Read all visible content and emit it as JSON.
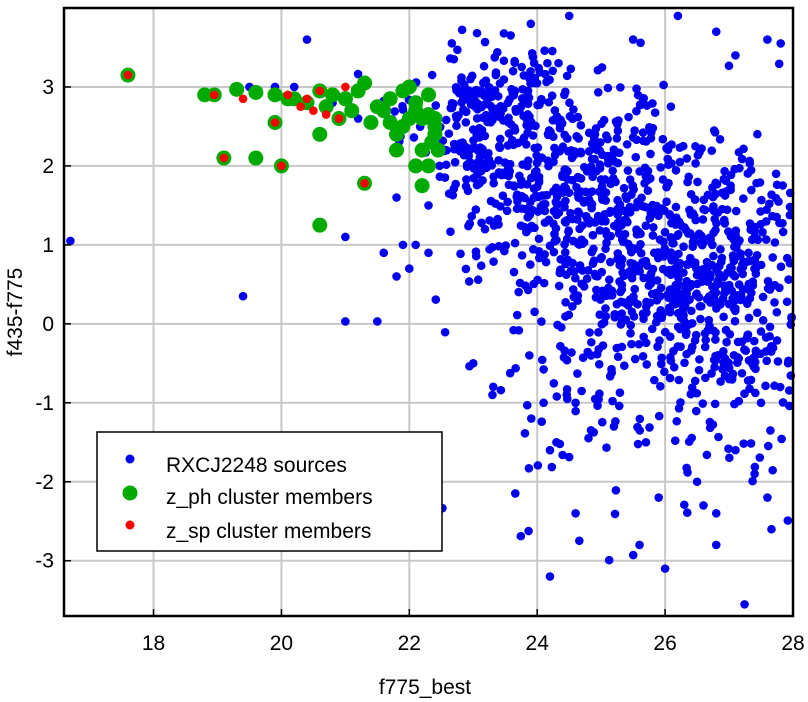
{
  "chart_data": {
    "type": "scatter",
    "xlabel": "f775_best",
    "ylabel": "f435-f775",
    "xlim": [
      16.6,
      28.0
    ],
    "ylim": [
      -3.7,
      4.0
    ],
    "xticks": [
      "18",
      "20",
      "22",
      "24",
      "26",
      "28"
    ],
    "yticks": [
      "3",
      "2",
      "1",
      "0",
      "-1",
      "-2",
      "-3"
    ],
    "xtick_values": [
      18,
      20,
      22,
      24,
      26,
      28
    ],
    "ytick_values": [
      3,
      2,
      1,
      0,
      -1,
      -2,
      -3
    ],
    "grid": true,
    "legend_position": "bottom-left",
    "series": [
      {
        "name": "RXCJ2248 sources",
        "color": "#0000ee",
        "marker": "small-circle",
        "generated_count": 1450,
        "points": [
          [
            16.7,
            1.05
          ],
          [
            19.4,
            0.35
          ],
          [
            21.0,
            0.03
          ],
          [
            21.5,
            0.03
          ],
          [
            20.4,
            3.6
          ],
          [
            21.6,
            0.9
          ],
          [
            21.3,
            1.8
          ],
          [
            20.8,
            2.8
          ],
          [
            21.9,
            1.0
          ],
          [
            21.8,
            1.6
          ],
          [
            21.8,
            0.6
          ],
          [
            22.0,
            0.7
          ],
          [
            21.2,
            2.6
          ],
          [
            20.2,
            3.0
          ],
          [
            19.9,
            3.0
          ],
          [
            19.5,
            3.0
          ],
          [
            22.1,
            1.0
          ],
          [
            22.3,
            1.5
          ],
          [
            22.3,
            0.9
          ],
          [
            21.0,
            1.1
          ],
          [
            24.2,
            -3.2
          ],
          [
            24.2,
            -1.6
          ],
          [
            24.3,
            -1.5
          ],
          [
            24.6,
            -2.4
          ],
          [
            25.6,
            -2.8
          ],
          [
            26.0,
            -3.1
          ],
          [
            26.8,
            -2.8
          ],
          [
            26.6,
            -2.3
          ],
          [
            26.8,
            -2.4
          ],
          [
            27.6,
            -2.2
          ],
          [
            27.4,
            -1.9
          ],
          [
            25.9,
            -2.2
          ],
          [
            25.7,
            -1.5
          ],
          [
            25.2,
            -1.3
          ],
          [
            24.6,
            -1.0
          ],
          [
            24.1,
            -1.0
          ],
          [
            23.3,
            -0.9
          ],
          [
            23.0,
            -0.5
          ],
          [
            27.5,
            -1.0
          ],
          [
            27.8,
            -0.8
          ],
          [
            27.1,
            -1.6
          ],
          [
            26.5,
            -2.0
          ],
          [
            26.2,
            3.9
          ],
          [
            26.0,
            4.0
          ],
          [
            25.5,
            3.6
          ],
          [
            26.8,
            3.7
          ],
          [
            27.6,
            3.6
          ],
          [
            27.1,
            3.4
          ],
          [
            24.5,
            3.9
          ],
          [
            23.9,
            3.8
          ]
        ]
      },
      {
        "name": "z_ph cluster members",
        "color": "#00aa00",
        "marker": "large-circle",
        "points": [
          [
            17.6,
            3.15
          ],
          [
            18.8,
            2.9
          ],
          [
            18.95,
            2.9
          ],
          [
            19.3,
            2.97
          ],
          [
            19.6,
            2.93
          ],
          [
            19.9,
            2.9
          ],
          [
            20.2,
            2.85
          ],
          [
            20.4,
            2.8
          ],
          [
            20.6,
            2.95
          ],
          [
            20.8,
            2.9
          ],
          [
            21.0,
            2.85
          ],
          [
            21.2,
            2.95
          ],
          [
            21.3,
            3.05
          ],
          [
            21.5,
            2.75
          ],
          [
            21.7,
            2.85
          ],
          [
            21.9,
            2.95
          ],
          [
            22.0,
            3.0
          ],
          [
            22.1,
            2.8
          ],
          [
            22.2,
            2.6
          ],
          [
            22.3,
            2.9
          ],
          [
            22.4,
            2.5
          ],
          [
            22.35,
            2.3
          ],
          [
            22.2,
            2.2
          ],
          [
            22.3,
            2.0
          ],
          [
            22.4,
            2.4
          ],
          [
            22.1,
            2.7
          ],
          [
            21.9,
            2.5
          ],
          [
            21.7,
            2.55
          ],
          [
            21.6,
            2.7
          ],
          [
            21.4,
            2.55
          ],
          [
            21.1,
            2.7
          ],
          [
            20.9,
            2.6
          ],
          [
            20.7,
            2.75
          ],
          [
            20.6,
            2.4
          ],
          [
            21.0,
            2.85
          ],
          [
            20.1,
            2.85
          ],
          [
            19.1,
            2.1
          ],
          [
            19.6,
            2.1
          ],
          [
            19.9,
            2.55
          ],
          [
            20.0,
            2.0
          ],
          [
            21.3,
            1.78
          ],
          [
            20.6,
            1.25
          ],
          [
            21.8,
            2.2
          ],
          [
            22.1,
            2.0
          ],
          [
            22.2,
            1.75
          ],
          [
            22.4,
            2.6
          ],
          [
            22.45,
            2.2
          ],
          [
            22.3,
            2.65
          ],
          [
            22.0,
            2.6
          ],
          [
            21.8,
            2.4
          ]
        ]
      },
      {
        "name": "z_sp cluster members",
        "color": "#ff0000",
        "marker": "small-circle",
        "points": [
          [
            17.6,
            3.15
          ],
          [
            18.95,
            2.9
          ],
          [
            19.4,
            2.85
          ],
          [
            19.9,
            2.55
          ],
          [
            19.1,
            2.1
          ],
          [
            20.0,
            2.0
          ],
          [
            20.1,
            2.9
          ],
          [
            20.3,
            2.75
          ],
          [
            20.5,
            2.7
          ],
          [
            20.6,
            2.95
          ],
          [
            20.7,
            2.65
          ],
          [
            21.0,
            3.0
          ],
          [
            20.9,
            2.6
          ],
          [
            21.3,
            1.78
          ],
          [
            20.4,
            2.85
          ]
        ]
      }
    ]
  }
}
